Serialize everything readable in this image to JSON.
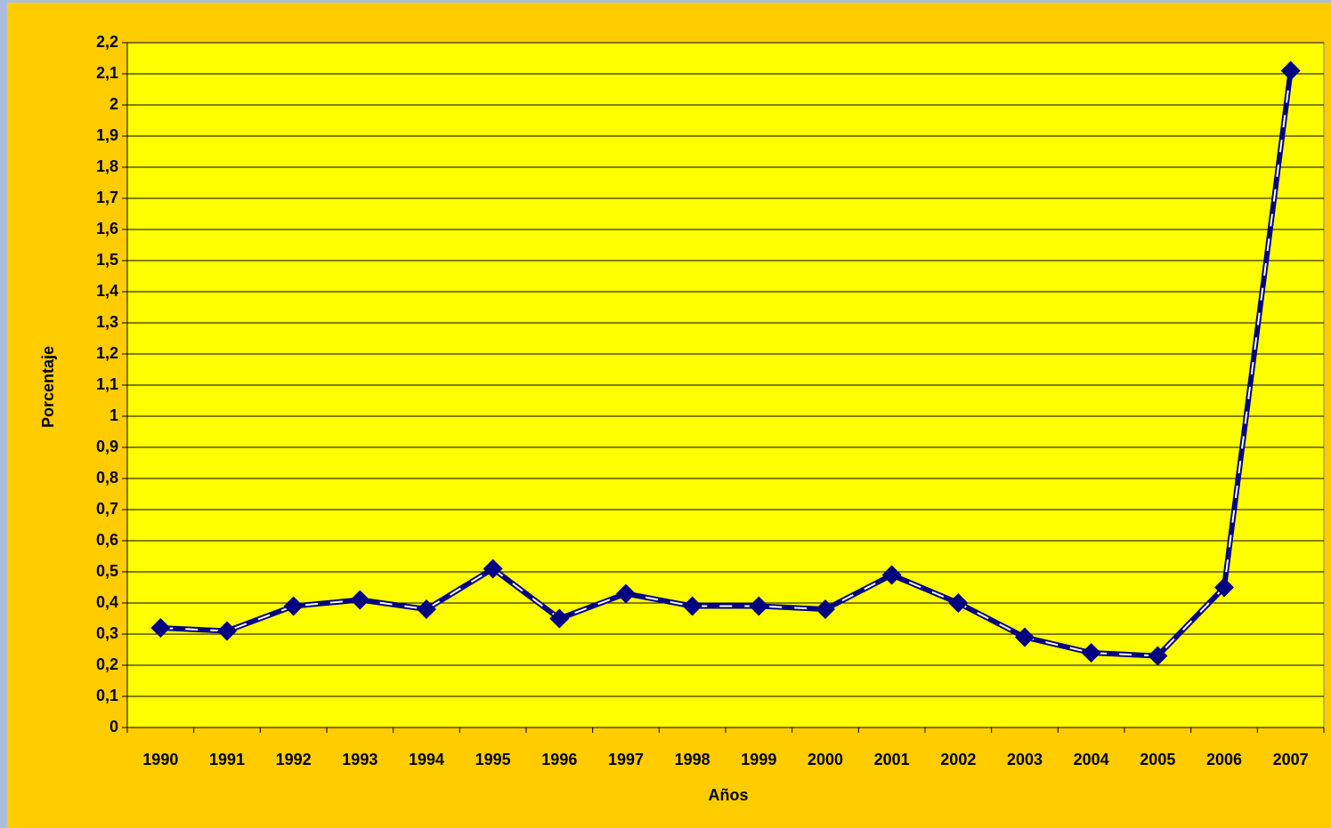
{
  "chart_data": {
    "type": "line",
    "x_label": "Años",
    "y_label": "Porcentaje",
    "categories": [
      "1990",
      "1991",
      "1992",
      "1993",
      "1994",
      "1995",
      "1996",
      "1997",
      "1998",
      "1999",
      "2000",
      "2001",
      "2002",
      "2003",
      "2004",
      "2005",
      "2006",
      "2007"
    ],
    "series": [
      {
        "color": "#000080",
        "values": [
          0.32,
          0.31,
          0.39,
          0.41,
          0.38,
          0.51,
          0.35,
          0.43,
          0.39,
          0.39,
          0.38,
          0.49,
          0.4,
          0.29,
          0.24,
          0.23,
          0.45,
          2.11
        ]
      }
    ],
    "ylim": [
      0,
      2.2
    ],
    "yticks": [
      0,
      {
        "value": 0.1,
        "label": "0,1"
      },
      {
        "value": 0.2,
        "label": "0,2"
      },
      {
        "value": 0.3,
        "label": "0,3"
      },
      {
        "value": 0.4,
        "label": "0,4"
      },
      {
        "value": 0.5,
        "label": "0,5"
      },
      {
        "value": 0.6,
        "label": "0,6"
      },
      {
        "value": 0.7,
        "label": "0,7"
      },
      {
        "value": 0.8,
        "label": "0,8"
      },
      {
        "value": 0.9,
        "label": "0,9"
      },
      1,
      {
        "value": 1.1,
        "label": "1,1"
      },
      {
        "value": 1.2,
        "label": "1,2"
      },
      {
        "value": 1.3,
        "label": "1,3"
      },
      {
        "value": 1.4,
        "label": "1,4"
      },
      {
        "value": 1.5,
        "label": "1,5"
      },
      {
        "value": 1.6,
        "label": "1,6"
      },
      {
        "value": 1.7,
        "label": "1,7"
      },
      {
        "value": 1.8,
        "label": "1,8"
      },
      {
        "value": 1.9,
        "label": "1,9"
      },
      2,
      {
        "value": 2.1,
        "label": "2,1"
      },
      {
        "value": 2.2,
        "label": "2,2"
      }
    ],
    "grid": true,
    "background": "#FFCC00",
    "plot_background": "#FFFF00"
  }
}
